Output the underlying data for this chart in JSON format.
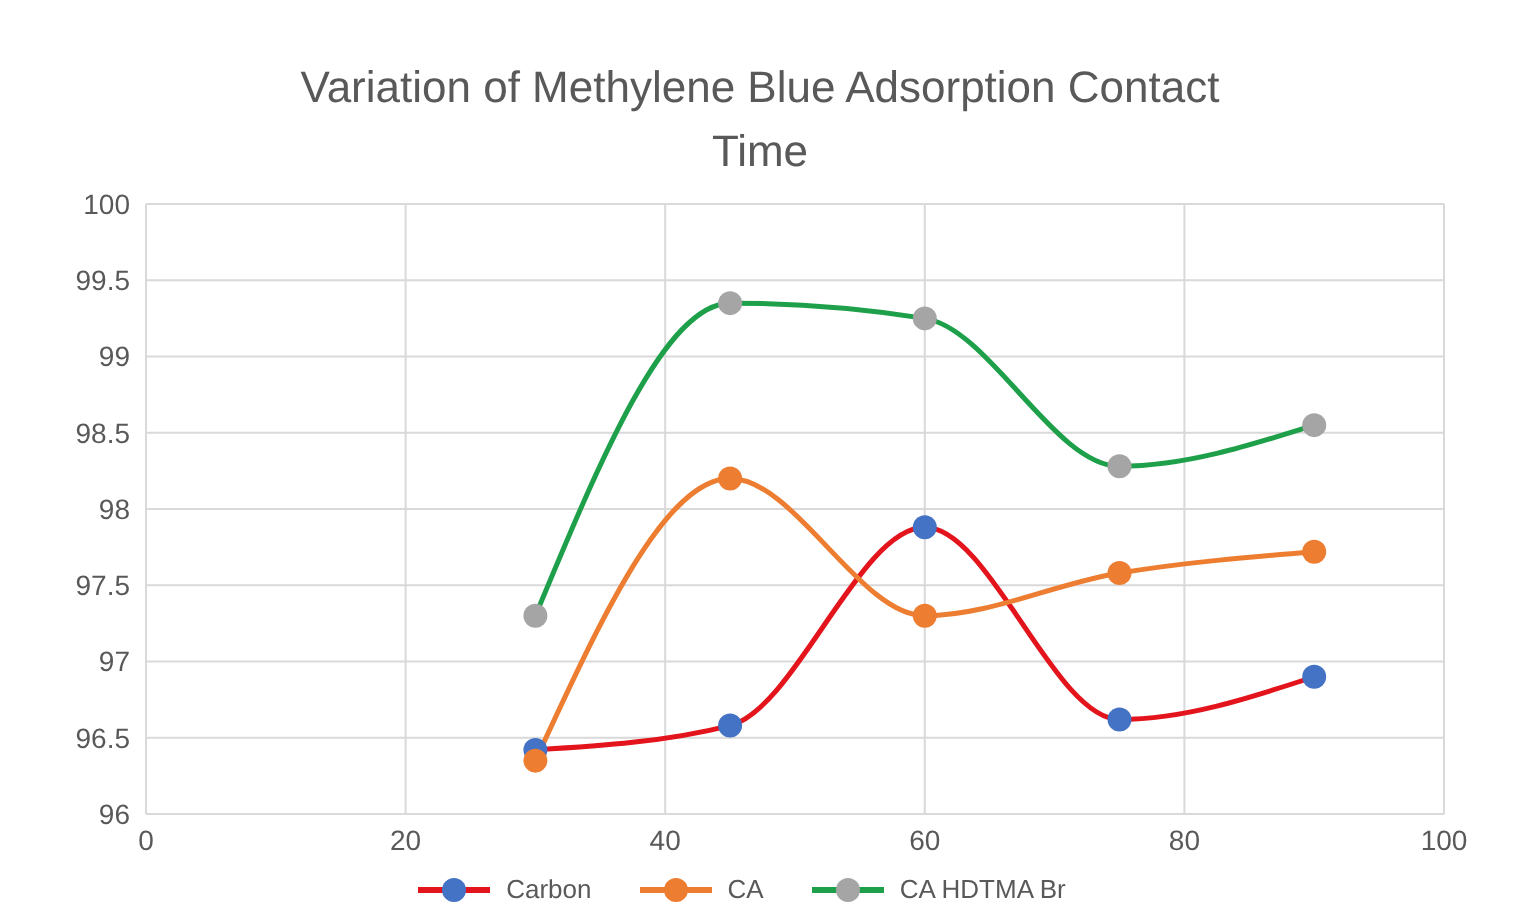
{
  "chart_data": {
    "type": "line",
    "title": "Variation of Methylene Blue Adsorption Contact Time",
    "x": [
      30,
      45,
      60,
      75,
      90
    ],
    "xlim": [
      0,
      100
    ],
    "xticks": [
      0,
      20,
      40,
      60,
      80,
      100
    ],
    "ylim": [
      96,
      100
    ],
    "yticks": [
      96,
      96.5,
      97,
      97.5,
      98,
      98.5,
      99,
      99.5,
      100
    ],
    "grid": true,
    "legend": "bottom",
    "marker": "circle",
    "series": [
      {
        "name": "Carbon",
        "color": "#e3141b",
        "colors": [
          "#4472c4",
          "#4472c4",
          "#4472c4",
          "#4472c4",
          "#4472c4"
        ],
        "values": [
          96.42,
          96.58,
          97.88,
          96.62,
          96.9
        ]
      },
      {
        "name": "CA",
        "color": "#ed7d31",
        "colors": [
          "#ed7d31",
          "#ed7d31",
          "#ed7d31",
          "#ed7d31",
          "#ed7d31"
        ],
        "values": [
          96.35,
          98.2,
          97.3,
          97.58,
          97.72
        ]
      },
      {
        "name": "CA HDTMA Br",
        "color": "#1ea04a",
        "colors": [
          "#a5a5a5",
          "#a5a5a5",
          "#a5a5a5",
          "#a5a5a5",
          "#a5a5a5"
        ],
        "values": [
          97.3,
          99.35,
          99.25,
          98.28,
          98.55
        ]
      }
    ]
  }
}
